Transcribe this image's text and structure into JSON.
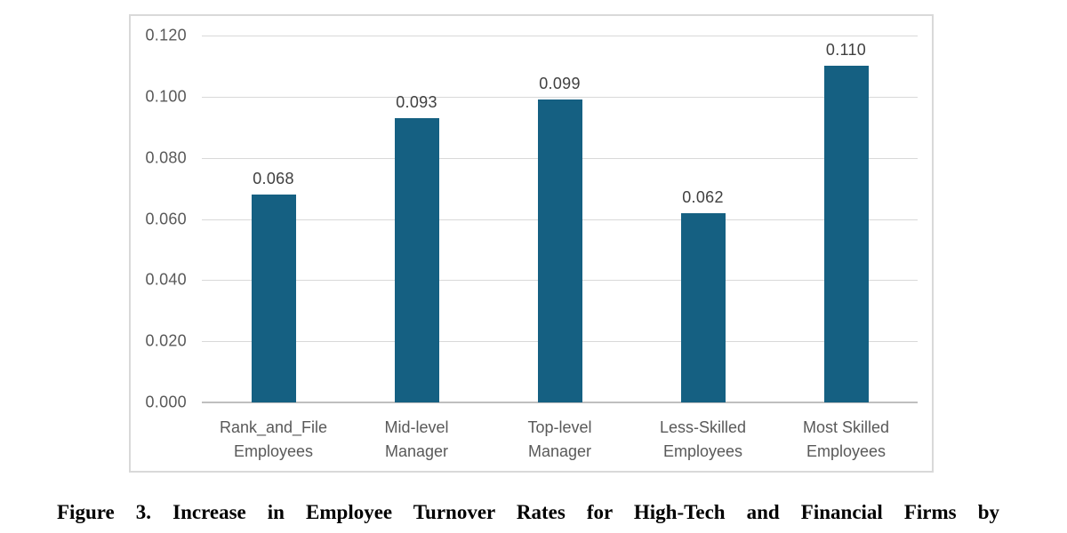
{
  "chart_data": {
    "type": "bar",
    "title": "",
    "xlabel": "",
    "ylabel": "",
    "categories": [
      "Rank_and_File\nEmployees",
      "Mid-level\nManager",
      "Top-level\nManager",
      "Less-Skilled\nEmployees",
      "Most Skilled\nEmployees"
    ],
    "values": [
      0.068,
      0.093,
      0.099,
      0.062,
      0.11
    ],
    "data_labels": [
      "0.068",
      "0.093",
      "0.099",
      "0.062",
      "0.110"
    ],
    "ylim": [
      0.0,
      0.12
    ],
    "ytick_step": 0.02,
    "ytick_labels": [
      "0.000",
      "0.020",
      "0.040",
      "0.060",
      "0.080",
      "0.100",
      "0.120"
    ],
    "grid": true,
    "legend_position": "none",
    "colors": {
      "bar": "#156082",
      "gridline": "#d9d9d9",
      "axis_line": "#bfbfbf",
      "tick_text": "#595959",
      "value_text": "#404040",
      "frame_border": "#d9d9d9"
    }
  },
  "caption": {
    "line1": "Figure 3. Increase in Employee Turnover Rates for High-Tech and Financial Firms by"
  }
}
